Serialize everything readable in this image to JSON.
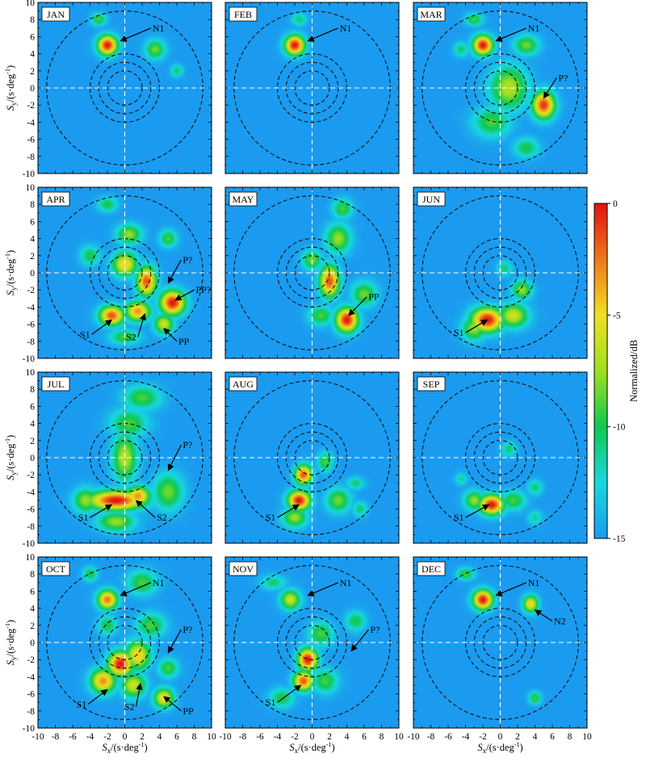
{
  "chart_data": {
    "type": "heatmap",
    "colorbar": {
      "label": "Normalized/dB",
      "range": [
        -15,
        0
      ],
      "ticks": [
        "0",
        "-5",
        "-10",
        "-15"
      ],
      "colors": [
        "#1a9bf0",
        "#18d8e0",
        "#10c850",
        "#9ee020",
        "#f0e020",
        "#f07818",
        "#e21010"
      ]
    },
    "axes": {
      "xlabel": "Sx/(s·deg-1)",
      "ylabel": "Sy/(s·deg-1)",
      "xlim": [
        -10,
        10
      ],
      "ylim": [
        -10,
        10
      ],
      "xticks": [
        "-10",
        "-8",
        "-6",
        "-4",
        "-2",
        "0",
        "2",
        "4",
        "6",
        "8",
        "10"
      ],
      "yticks": [
        "10",
        "8",
        "6",
        "4",
        "2",
        "0",
        "-2",
        "-4",
        "-6",
        "-8",
        "-10"
      ]
    },
    "reference_circles_radii": [
      2,
      3,
      4,
      9
    ],
    "panels": [
      {
        "month": "JAN",
        "sources": [
          {
            "x": -2,
            "y": 5,
            "amp": 1.0,
            "sx": 0.8,
            "sy": 0.8
          },
          {
            "x": -3,
            "y": 8,
            "amp": 0.4,
            "sx": 0.6,
            "sy": 0.5
          },
          {
            "x": 3.5,
            "y": 4.5,
            "amp": 0.45,
            "sx": 0.8,
            "sy": 0.8
          },
          {
            "x": 6,
            "y": 2,
            "amp": 0.3,
            "sx": 0.5,
            "sy": 0.5
          }
        ],
        "annotations": [
          {
            "label": "N1",
            "from": [
              3,
              7
            ],
            "to": [
              -0.5,
              5.5
            ]
          }
        ]
      },
      {
        "month": "FEB",
        "sources": [
          {
            "x": -2,
            "y": 5,
            "amp": 1.0,
            "sx": 0.8,
            "sy": 0.8
          },
          {
            "x": -1.5,
            "y": 8,
            "amp": 0.3,
            "sx": 0.6,
            "sy": 0.5
          }
        ],
        "annotations": [
          {
            "label": "N1",
            "from": [
              3,
              7
            ],
            "to": [
              -0.5,
              5.5
            ]
          }
        ]
      },
      {
        "month": "MAR",
        "sources": [
          {
            "x": -2,
            "y": 5,
            "amp": 1.0,
            "sx": 0.8,
            "sy": 0.8
          },
          {
            "x": 5,
            "y": -2,
            "amp": 0.95,
            "sx": 0.9,
            "sy": 1.1
          },
          {
            "x": 1,
            "y": 0,
            "amp": 0.55,
            "sx": 1.5,
            "sy": 1.8
          },
          {
            "x": 3,
            "y": 5,
            "amp": 0.45,
            "sx": 1,
            "sy": 0.8
          },
          {
            "x": -3,
            "y": 8,
            "amp": 0.4,
            "sx": 0.7,
            "sy": 0.5
          },
          {
            "x": -1,
            "y": -4,
            "amp": 0.4,
            "sx": 1.5,
            "sy": 1.2
          },
          {
            "x": 3,
            "y": -7,
            "amp": 0.35,
            "sx": 1,
            "sy": 0.8
          },
          {
            "x": -4.5,
            "y": 4.5,
            "amp": 0.3,
            "sx": 0.6,
            "sy": 0.6
          }
        ],
        "annotations": [
          {
            "label": "N1",
            "from": [
              3,
              7
            ],
            "to": [
              -0.5,
              5.5
            ]
          },
          {
            "label": "P?",
            "from": [
              6.5,
              1.2
            ],
            "to": [
              5,
              -1.2
            ]
          }
        ]
      },
      {
        "month": "APR",
        "sources": [
          {
            "x": 5.5,
            "y": -3.5,
            "amp": 1.0,
            "sx": 1,
            "sy": 1
          },
          {
            "x": 2.5,
            "y": -1,
            "amp": 0.9,
            "sx": 0.8,
            "sy": 1.2
          },
          {
            "x": -1.5,
            "y": -5,
            "amp": 0.9,
            "sx": 1,
            "sy": 0.8
          },
          {
            "x": 1.5,
            "y": -4.5,
            "amp": 0.8,
            "sx": 1,
            "sy": 0.8
          },
          {
            "x": 4.5,
            "y": -6,
            "amp": 0.6,
            "sx": 0.8,
            "sy": 0.8
          },
          {
            "x": 0,
            "y": 1,
            "amp": 0.7,
            "sx": 1,
            "sy": 1
          },
          {
            "x": 0.5,
            "y": 4.5,
            "amp": 0.5,
            "sx": 1,
            "sy": 0.8
          },
          {
            "x": 5,
            "y": 4,
            "amp": 0.4,
            "sx": 0.7,
            "sy": 0.7
          },
          {
            "x": -2,
            "y": 8,
            "amp": 0.35,
            "sx": 0.8,
            "sy": 0.6
          },
          {
            "x": -4,
            "y": 2,
            "amp": 0.35,
            "sx": 0.8,
            "sy": 0.8
          },
          {
            "x": 0,
            "y": -7.5,
            "amp": 0.4,
            "sx": 1.2,
            "sy": 0.6
          }
        ],
        "annotations": [
          {
            "label": "P?",
            "from": [
              6.5,
              1.5
            ],
            "to": [
              5,
              -1.2
            ]
          },
          {
            "label": "PP?",
            "from": [
              8,
              -2
            ],
            "to": [
              5.8,
              -3.2
            ]
          },
          {
            "label": "S1",
            "from": [
              -3.8,
              -7.2
            ],
            "to": [
              -1.5,
              -5.5
            ]
          },
          {
            "label": "S2",
            "from": [
              1.5,
              -7.5
            ],
            "to": [
              2.3,
              -4.8
            ]
          },
          {
            "label": "PP",
            "from": [
              6,
              -8
            ],
            "to": [
              4.5,
              -6.5
            ]
          }
        ]
      },
      {
        "month": "MAY",
        "sources": [
          {
            "x": 4,
            "y": -5.5,
            "amp": 1.0,
            "sx": 0.9,
            "sy": 1
          },
          {
            "x": 2,
            "y": -1,
            "amp": 0.9,
            "sx": 0.8,
            "sy": 1.3
          },
          {
            "x": 3,
            "y": 4,
            "amp": 0.5,
            "sx": 1,
            "sy": 1.2
          },
          {
            "x": 3.5,
            "y": 7.5,
            "amp": 0.4,
            "sx": 0.8,
            "sy": 0.8
          },
          {
            "x": 0,
            "y": 1.5,
            "amp": 0.45,
            "sx": 0.8,
            "sy": 0.8
          },
          {
            "x": 6,
            "y": -2.5,
            "amp": 0.45,
            "sx": 1,
            "sy": 1
          },
          {
            "x": 1,
            "y": -5,
            "amp": 0.4,
            "sx": 1,
            "sy": 0.8
          }
        ],
        "annotations": [
          {
            "label": "PP",
            "from": [
              6.3,
              -2.8
            ],
            "to": [
              4.2,
              -5
            ]
          }
        ]
      },
      {
        "month": "JUN",
        "sources": [
          {
            "x": -1.5,
            "y": -5.5,
            "amp": 1.0,
            "sx": 1.3,
            "sy": 1
          },
          {
            "x": 1.5,
            "y": -5,
            "amp": 0.6,
            "sx": 1.2,
            "sy": 1
          },
          {
            "x": 2.5,
            "y": -2,
            "amp": 0.5,
            "sx": 0.8,
            "sy": 0.8
          },
          {
            "x": -3,
            "y": -6.5,
            "amp": 0.5,
            "sx": 1,
            "sy": 1
          },
          {
            "x": 0.5,
            "y": 0.5,
            "amp": 0.3,
            "sx": 0.6,
            "sy": 0.6
          }
        ],
        "annotations": [
          {
            "label": "S1",
            "from": [
              -4,
              -7
            ],
            "to": [
              -1.5,
              -5.5
            ]
          }
        ]
      },
      {
        "month": "JUL",
        "sources": [
          {
            "x": -1,
            "y": -5,
            "amp": 1.0,
            "sx": 2.3,
            "sy": 0.8
          },
          {
            "x": 1.5,
            "y": -4.5,
            "amp": 0.8,
            "sx": 1,
            "sy": 0.8
          },
          {
            "x": -1,
            "y": -7.5,
            "amp": 0.5,
            "sx": 1.5,
            "sy": 0.8
          },
          {
            "x": 0,
            "y": 0,
            "amp": 0.55,
            "sx": 1,
            "sy": 2
          },
          {
            "x": 0.5,
            "y": 4,
            "amp": 0.4,
            "sx": 1.5,
            "sy": 1.2
          },
          {
            "x": 2,
            "y": 7,
            "amp": 0.4,
            "sx": 1.5,
            "sy": 1
          },
          {
            "x": 5,
            "y": -4,
            "amp": 0.45,
            "sx": 1.2,
            "sy": 1.5
          },
          {
            "x": -4.5,
            "y": -5,
            "amp": 0.5,
            "sx": 1,
            "sy": 1
          }
        ],
        "annotations": [
          {
            "label": "P?",
            "from": [
              6.5,
              1.5
            ],
            "to": [
              5,
              -1.5
            ]
          },
          {
            "label": "S1",
            "from": [
              -4,
              -7
            ],
            "to": [
              -1.5,
              -5.5
            ]
          },
          {
            "label": "S2",
            "from": [
              3.5,
              -7
            ],
            "to": [
              1.3,
              -5
            ]
          }
        ]
      },
      {
        "month": "AUG",
        "sources": [
          {
            "x": -1.5,
            "y": -5,
            "amp": 1.0,
            "sx": 0.9,
            "sy": 0.8
          },
          {
            "x": -1,
            "y": -2,
            "amp": 0.9,
            "sx": 0.7,
            "sy": 0.8
          },
          {
            "x": 3,
            "y": -5,
            "amp": 0.45,
            "sx": 1,
            "sy": 1
          },
          {
            "x": 1.5,
            "y": -0.5,
            "amp": 0.4,
            "sx": 0.6,
            "sy": 0.8
          },
          {
            "x": 5,
            "y": -3,
            "amp": 0.3,
            "sx": 0.7,
            "sy": 0.5
          },
          {
            "x": -2,
            "y": -7,
            "amp": 0.5,
            "sx": 1,
            "sy": 0.8
          },
          {
            "x": 5.5,
            "y": -6,
            "amp": 0.3,
            "sx": 0.6,
            "sy": 0.6
          }
        ],
        "annotations": [
          {
            "label": "S1",
            "from": [
              -4,
              -7
            ],
            "to": [
              -1.5,
              -5.5
            ]
          }
        ]
      },
      {
        "month": "SEP",
        "sources": [
          {
            "x": -1,
            "y": -5.5,
            "amp": 1.0,
            "sx": 1,
            "sy": 0.8
          },
          {
            "x": -3,
            "y": -5,
            "amp": 0.5,
            "sx": 0.8,
            "sy": 0.8
          },
          {
            "x": 1.5,
            "y": -5,
            "amp": 0.4,
            "sx": 1,
            "sy": 0.8
          },
          {
            "x": 1,
            "y": 1,
            "amp": 0.3,
            "sx": 0.6,
            "sy": 0.6
          },
          {
            "x": 4,
            "y": -3.5,
            "amp": 0.3,
            "sx": 0.6,
            "sy": 0.6
          },
          {
            "x": -4.5,
            "y": -2.5,
            "amp": 0.25,
            "sx": 0.5,
            "sy": 0.5
          },
          {
            "x": 4,
            "y": -7,
            "amp": 0.25,
            "sx": 0.6,
            "sy": 0.6
          }
        ],
        "annotations": [
          {
            "label": "S1",
            "from": [
              -4,
              -7
            ],
            "to": [
              -1.3,
              -5.5
            ]
          }
        ]
      },
      {
        "month": "OCT",
        "sources": [
          {
            "x": -0.5,
            "y": -2.5,
            "amp": 1.0,
            "sx": 1,
            "sy": 1
          },
          {
            "x": -2,
            "y": 5,
            "amp": 0.85,
            "sx": 0.8,
            "sy": 0.8
          },
          {
            "x": -2.5,
            "y": -4.5,
            "amp": 0.8,
            "sx": 1,
            "sy": 1
          },
          {
            "x": 1.5,
            "y": -1.5,
            "amp": 0.7,
            "sx": 1,
            "sy": 1.2
          },
          {
            "x": 4.5,
            "y": -6.5,
            "amp": 0.7,
            "sx": 0.8,
            "sy": 0.8
          },
          {
            "x": 1,
            "y": -5,
            "amp": 0.6,
            "sx": 1,
            "sy": 1
          },
          {
            "x": 3,
            "y": 2,
            "amp": 0.4,
            "sx": 1.2,
            "sy": 1
          },
          {
            "x": 2,
            "y": 7,
            "amp": 0.4,
            "sx": 1.2,
            "sy": 1
          },
          {
            "x": -4,
            "y": 8,
            "amp": 0.35,
            "sx": 0.6,
            "sy": 0.6
          },
          {
            "x": 5,
            "y": -3,
            "amp": 0.4,
            "sx": 0.8,
            "sy": 0.8
          },
          {
            "x": -2,
            "y": 2,
            "amp": 0.35,
            "sx": 0.8,
            "sy": 0.8
          }
        ],
        "annotations": [
          {
            "label": "N1",
            "from": [
              3,
              7
            ],
            "to": [
              -0.5,
              5.5
            ]
          },
          {
            "label": "P?",
            "from": [
              6.5,
              1.5
            ],
            "to": [
              5,
              -1.2
            ]
          },
          {
            "label": "S1",
            "from": [
              -4.2,
              -7.2
            ],
            "to": [
              -2,
              -5.5
            ]
          },
          {
            "label": "S2",
            "from": [
              1.3,
              -7.5
            ],
            "to": [
              1.8,
              -4.8
            ]
          },
          {
            "label": "PP",
            "from": [
              6.5,
              -8
            ],
            "to": [
              4.5,
              -6.3
            ]
          }
        ]
      },
      {
        "month": "NOV",
        "sources": [
          {
            "x": -0.5,
            "y": -2,
            "amp": 1.0,
            "sx": 0.8,
            "sy": 0.9
          },
          {
            "x": -1,
            "y": -4.5,
            "amp": 0.9,
            "sx": 0.8,
            "sy": 0.8
          },
          {
            "x": -2.5,
            "y": 5,
            "amp": 0.6,
            "sx": 0.8,
            "sy": 0.8
          },
          {
            "x": 1,
            "y": 1,
            "amp": 0.4,
            "sx": 1,
            "sy": 1
          },
          {
            "x": 5,
            "y": 2.5,
            "amp": 0.35,
            "sx": 0.8,
            "sy": 0.8
          },
          {
            "x": 1.5,
            "y": -4.5,
            "amp": 0.4,
            "sx": 1,
            "sy": 1
          },
          {
            "x": -4.5,
            "y": 7,
            "amp": 0.3,
            "sx": 1,
            "sy": 0.6
          },
          {
            "x": -3.5,
            "y": -6.5,
            "amp": 0.35,
            "sx": 1,
            "sy": 0.8
          }
        ],
        "annotations": [
          {
            "label": "N1",
            "from": [
              3,
              7
            ],
            "to": [
              -0.5,
              5.5
            ]
          },
          {
            "label": "P?",
            "from": [
              6.5,
              1.5
            ],
            "to": [
              4.5,
              -1
            ]
          },
          {
            "label": "S1",
            "from": [
              -4,
              -7
            ],
            "to": [
              -1.3,
              -5
            ]
          }
        ]
      },
      {
        "month": "DEC",
        "sources": [
          {
            "x": -2,
            "y": 5,
            "amp": 1.0,
            "sx": 0.8,
            "sy": 0.8
          },
          {
            "x": 3.5,
            "y": 4.5,
            "amp": 0.7,
            "sx": 0.6,
            "sy": 0.7
          },
          {
            "x": -4,
            "y": 8,
            "amp": 0.4,
            "sx": 0.7,
            "sy": 0.5
          },
          {
            "x": 4,
            "y": -6.5,
            "amp": 0.4,
            "sx": 0.5,
            "sy": 0.5
          }
        ],
        "annotations": [
          {
            "label": "N1",
            "from": [
              3,
              7
            ],
            "to": [
              -0.5,
              5.5
            ]
          },
          {
            "label": "N2",
            "from": [
              6,
              2.5
            ],
            "to": [
              4,
              3.8
            ]
          }
        ]
      }
    ]
  }
}
